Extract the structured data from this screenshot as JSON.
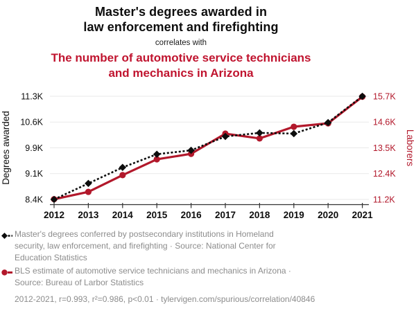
{
  "header": {
    "title_lines": [
      "Master's degrees awarded in",
      "law enforcement and firefighting"
    ],
    "correlates_with": "correlates with",
    "subtitle_lines": [
      "The number of automotive service technicians",
      "and mechanics in Arizona"
    ]
  },
  "legend": {
    "series1_lines": [
      "Master's degrees conferred by postsecondary institutions in Homeland",
      "security, law enforcement, and firefighting · Source: National Center for",
      "Education Statistics"
    ],
    "series2_lines": [
      "BLS estimate of automotive service technicians and mechanics in Arizona ·",
      "Source: Bureau of Larbor Statistics"
    ],
    "footer": "2012-2021, r=0.993, r²=0.986, p<0.01 · tylervigen.com/spurious/correlation/40846"
  },
  "colors": {
    "accent_red": "#c0142f",
    "series_red": "#b2182b",
    "series_black": "#0d0d0d",
    "legend_gray": "#8c8c8c",
    "gridline": "#e9e9e9",
    "axis_dark": "#333333"
  },
  "chart_data": {
    "type": "line",
    "title": "Master's degrees awarded in law enforcement and firefighting correlates with The number of automotive service technicians and mechanics in Arizona",
    "x": [
      "2012",
      "2013",
      "2014",
      "2015",
      "2016",
      "2017",
      "2018",
      "2019",
      "2020",
      "2021"
    ],
    "series": [
      {
        "name": "Master's degrees conferred by postsecondary institutions in Homeland security, law enforcement, and firefighting",
        "source": "National Center for Education Statistics",
        "axis": "left",
        "color": "#0d0d0d",
        "style": "dashed",
        "marker": "diamond",
        "values": [
          8400,
          8850,
          9300,
          9670,
          9780,
          10170,
          10270,
          10250,
          10560,
          11300
        ]
      },
      {
        "name": "BLS estimate of automotive service technicians and mechanics in Arizona",
        "source": "Bureau of Larbor Statistics",
        "axis": "right",
        "color": "#b2182b",
        "style": "solid",
        "marker": "circle",
        "values": [
          11210,
          11530,
          12260,
          12950,
          13190,
          14070,
          13860,
          14370,
          14520,
          15680
        ]
      }
    ],
    "left_axis": {
      "label": "Degrees awarded",
      "ticks": [
        "8.4K",
        "9.1K",
        "9.9K",
        "10.6K",
        "11.3K"
      ],
      "min": 8400,
      "max": 11300
    },
    "right_axis": {
      "label": "Laborers",
      "ticks": [
        "11.2K",
        "12.4K",
        "13.5K",
        "14.6K",
        "15.7K"
      ],
      "min": 11200,
      "max": 15700
    },
    "grid": "horizontal",
    "legend_position": "bottom",
    "stats": {
      "years": "2012-2021",
      "r": 0.993,
      "r2": 0.986,
      "p": "<0.01"
    },
    "source_url": "tylervigen.com/spurious/correlation/40846"
  }
}
